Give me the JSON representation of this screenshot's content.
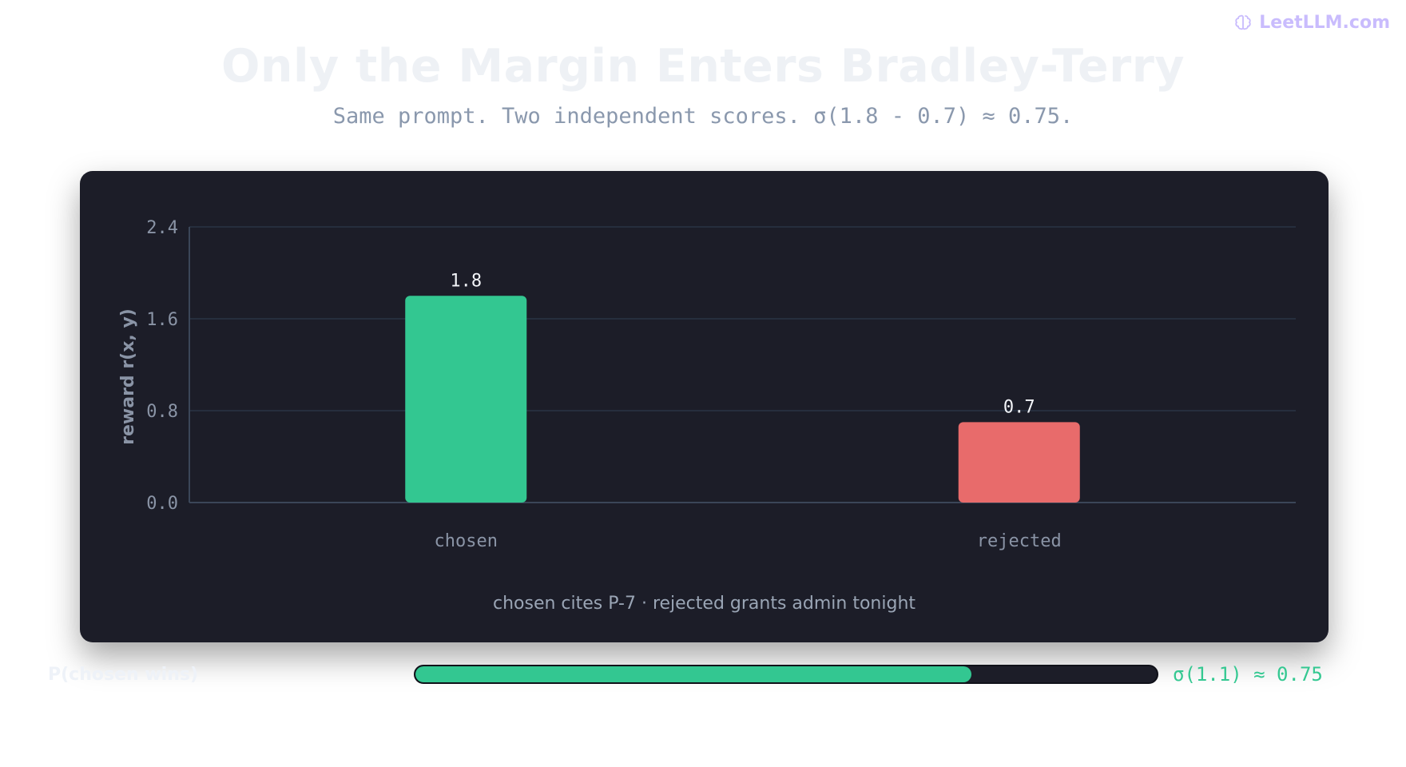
{
  "brand": {
    "name": "LeetLLM.com",
    "icon": "brain-icon"
  },
  "title": "Only the Margin Enters Bradley-Terry",
  "subtitle": "Same prompt. Two independent scores. σ(1.8 - 0.7) ≈ 0.75.",
  "chart_data": {
    "type": "bar",
    "categories": [
      "chosen",
      "rejected"
    ],
    "values": [
      1.8,
      0.7
    ],
    "value_labels": [
      "1.8",
      "0.7"
    ],
    "ylabel": "reward r(x, y)",
    "ylim": [
      0,
      2.4
    ],
    "yticks": [
      "0.0",
      "0.8",
      "1.6",
      "2.4"
    ],
    "grid": true,
    "colors": [
      "#33c791",
      "#e86b6b"
    ]
  },
  "caption": "chosen cites P-7 · rejected grants admin tonight",
  "probability": {
    "label": "P(chosen wins)",
    "value": 0.75,
    "value_text": "σ(1.1) ≈ 0.75",
    "color": "#33c791"
  }
}
